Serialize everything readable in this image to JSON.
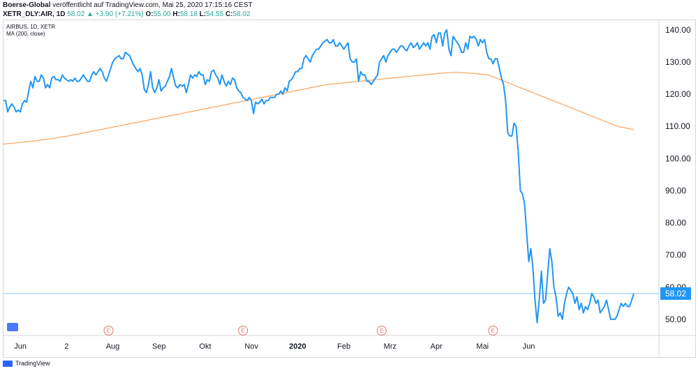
{
  "header": {
    "publisher": "Boerse-Global",
    "published_text": "veröffentlicht auf TradingView.com, Mai 25, 2020 17:15:16 CEST",
    "symbol": "XETR_DLY:AIR, 1D",
    "last": "58.02",
    "change_arrow": "▲",
    "change": "+3.90 (+7.21%)",
    "o_label": "O:",
    "o_value": "55.00",
    "h_label": "H:",
    "h_value": "58.18",
    "l_label": "L:",
    "l_value": "54.55",
    "c_label": "C:",
    "c_value": "58.02"
  },
  "legend": {
    "line1": "AIRBUS, 1D, XETR",
    "line2": "MA (200, close)"
  },
  "footer": {
    "brand": "TradingView"
  },
  "chart_data": {
    "type": "line",
    "ylim": [
      45,
      143
    ],
    "yticks": [
      "140.00",
      "130.00",
      "120.00",
      "110.00",
      "100.00",
      "90.00",
      "80.00",
      "70.00",
      "60.00",
      "50.00"
    ],
    "ytick_values": [
      140,
      130,
      120,
      110,
      100,
      90,
      80,
      70,
      60,
      50
    ],
    "xticks": [
      "Jun",
      "2",
      "Aug",
      "Sep",
      "Okt",
      "Nov",
      "2020",
      "Feb",
      "Mrz",
      "Apr",
      "Mai",
      "Jun"
    ],
    "xtick_index": [
      8,
      30,
      52,
      74,
      96,
      118,
      140,
      162,
      184,
      206,
      228,
      250
    ],
    "last_price": 58.02,
    "last_price_label": "58.02",
    "earnings_marker": "E",
    "earnings_index": [
      50,
      114,
      180,
      233
    ],
    "colors": {
      "price": "#2196f3",
      "ma": "#f7a35c",
      "last_line": "#87c4f0",
      "label_bg": "#2196f3",
      "earnings": "#e57373"
    },
    "series": [
      {
        "values": [
          118,
          118,
          114.5,
          116,
          117,
          116,
          114.5,
          115,
          114.5,
          117,
          118,
          117.5,
          121,
          124,
          122,
          125.5,
          124,
          124,
          126,
          125,
          122,
          123,
          122,
          125,
          125.5,
          124.5,
          124.5,
          124,
          126,
          125,
          124.5,
          124,
          124.5,
          124,
          125,
          124,
          124,
          125,
          126,
          125,
          124,
          124,
          126,
          127,
          126,
          127,
          128,
          127,
          125,
          124,
          126,
          128,
          130,
          131,
          131.5,
          132,
          131,
          131,
          133,
          132.5,
          132,
          130.5,
          129,
          128,
          127,
          128,
          126,
          121.5,
          120.5,
          123,
          127,
          122,
          120.5,
          122,
          124.5,
          121,
          122,
          122.5,
          124,
          125.5,
          128,
          125,
          122.5,
          122,
          123,
          122.5,
          123,
          120.5,
          123,
          126,
          125,
          126,
          125.5,
          127,
          126,
          126,
          123,
          124.5,
          124,
          127,
          127.5,
          126,
          125,
          123,
          126,
          124,
          122.5,
          124,
          123,
          125,
          124.5,
          122,
          121,
          120.5,
          119,
          118.5,
          118,
          119,
          118,
          114,
          117.5,
          117,
          117.5,
          118.5,
          117,
          118,
          118,
          119,
          119,
          119,
          120,
          120,
          121,
          120,
          122,
          121,
          124,
          124.5,
          125.5,
          127,
          127,
          128,
          128,
          131,
          132,
          131,
          130,
          132,
          133,
          134,
          134,
          135,
          136,
          136.5,
          137,
          136,
          136,
          137,
          135,
          135,
          136,
          135,
          134,
          135,
          136,
          131,
          130,
          130,
          131,
          124,
          127,
          126,
          126,
          124,
          124,
          123,
          124,
          125,
          126,
          130,
          131,
          132,
          130,
          132,
          133,
          134,
          134,
          133,
          134,
          135,
          135,
          134,
          133.5,
          135,
          136,
          134.5,
          135,
          136,
          134,
          135,
          136,
          135,
          136,
          134,
          138,
          138.5,
          136,
          139,
          139,
          135,
          139,
          140,
          134,
          132,
          138,
          137,
          136,
          135,
          133,
          133,
          136,
          134,
          138,
          137.5,
          138,
          137,
          135,
          137,
          136,
          137,
          133,
          131,
          131,
          129.5,
          131,
          131,
          128,
          125,
          123,
          118,
          108,
          107,
          107,
          111,
          110,
          102,
          90,
          89,
          86,
          77,
          68,
          72,
          66,
          56,
          49,
          56,
          65,
          55,
          56,
          64,
          72,
          68,
          60,
          57,
          51,
          52,
          50,
          55,
          58,
          60,
          59,
          58,
          55,
          57,
          53,
          55,
          52,
          54,
          53,
          55,
          58,
          57,
          55,
          56,
          52,
          53,
          54,
          56,
          53,
          50,
          50,
          50,
          51,
          53,
          55,
          54,
          55,
          54,
          54,
          56,
          58.02
        ],
        "color": "#2196f3"
      },
      {
        "values": [
          104.5,
          105,
          105.5,
          106.2,
          107,
          108,
          109,
          110,
          111,
          112,
          113,
          114,
          115,
          116,
          117,
          118,
          119,
          120,
          121,
          122,
          123,
          123.5,
          124,
          124.5,
          125,
          125.5,
          126,
          126.5,
          126.8,
          126.5,
          126,
          124,
          122,
          120,
          118,
          116,
          114,
          112,
          110,
          109
        ],
        "color": "#f7a35c"
      }
    ]
  }
}
